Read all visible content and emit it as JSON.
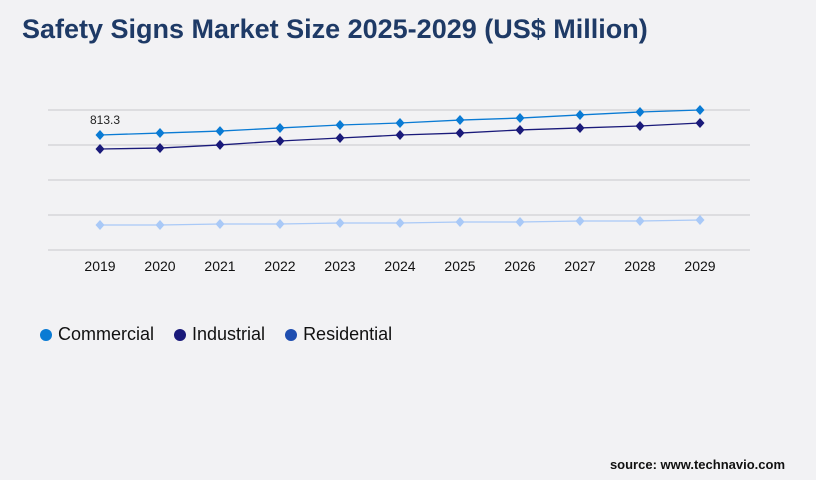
{
  "title": "Safety Signs Market Size 2025-2029 (US$ Million)",
  "source": "source: www.technavio.com",
  "chart_data": {
    "type": "line",
    "title": "Safety Signs Market Size 2025-2029 (US$ Million)",
    "categories": [
      "2019",
      "2020",
      "2021",
      "2022",
      "2023",
      "2024",
      "2025",
      "2026",
      "2027",
      "2028",
      "2029"
    ],
    "ylim": [
      0,
      990
    ],
    "grid": true,
    "legend_position": "bottom-left",
    "annotations": [
      {
        "series": "Commercial",
        "category": "2019",
        "text": "813.3"
      }
    ],
    "series": [
      {
        "name": "Commercial",
        "color": "#0a7bd4",
        "legend_color": "#0a7bd4",
        "values": [
          813.3,
          827,
          841,
          863,
          884,
          898,
          919,
          933,
          955,
          976,
          990
        ]
      },
      {
        "name": "Industrial",
        "color": "#1a1a7a",
        "legend_color": "#1a1a7a",
        "values": [
          714,
          721,
          743,
          771,
          792,
          813,
          827,
          849,
          863,
          877,
          898
        ]
      },
      {
        "name": "Residential",
        "color": "#a9c9f7",
        "legend_color": "#1f4eb0",
        "values": [
          177,
          177,
          184,
          184,
          191,
          191,
          198,
          198,
          205,
          205,
          212
        ]
      }
    ]
  }
}
